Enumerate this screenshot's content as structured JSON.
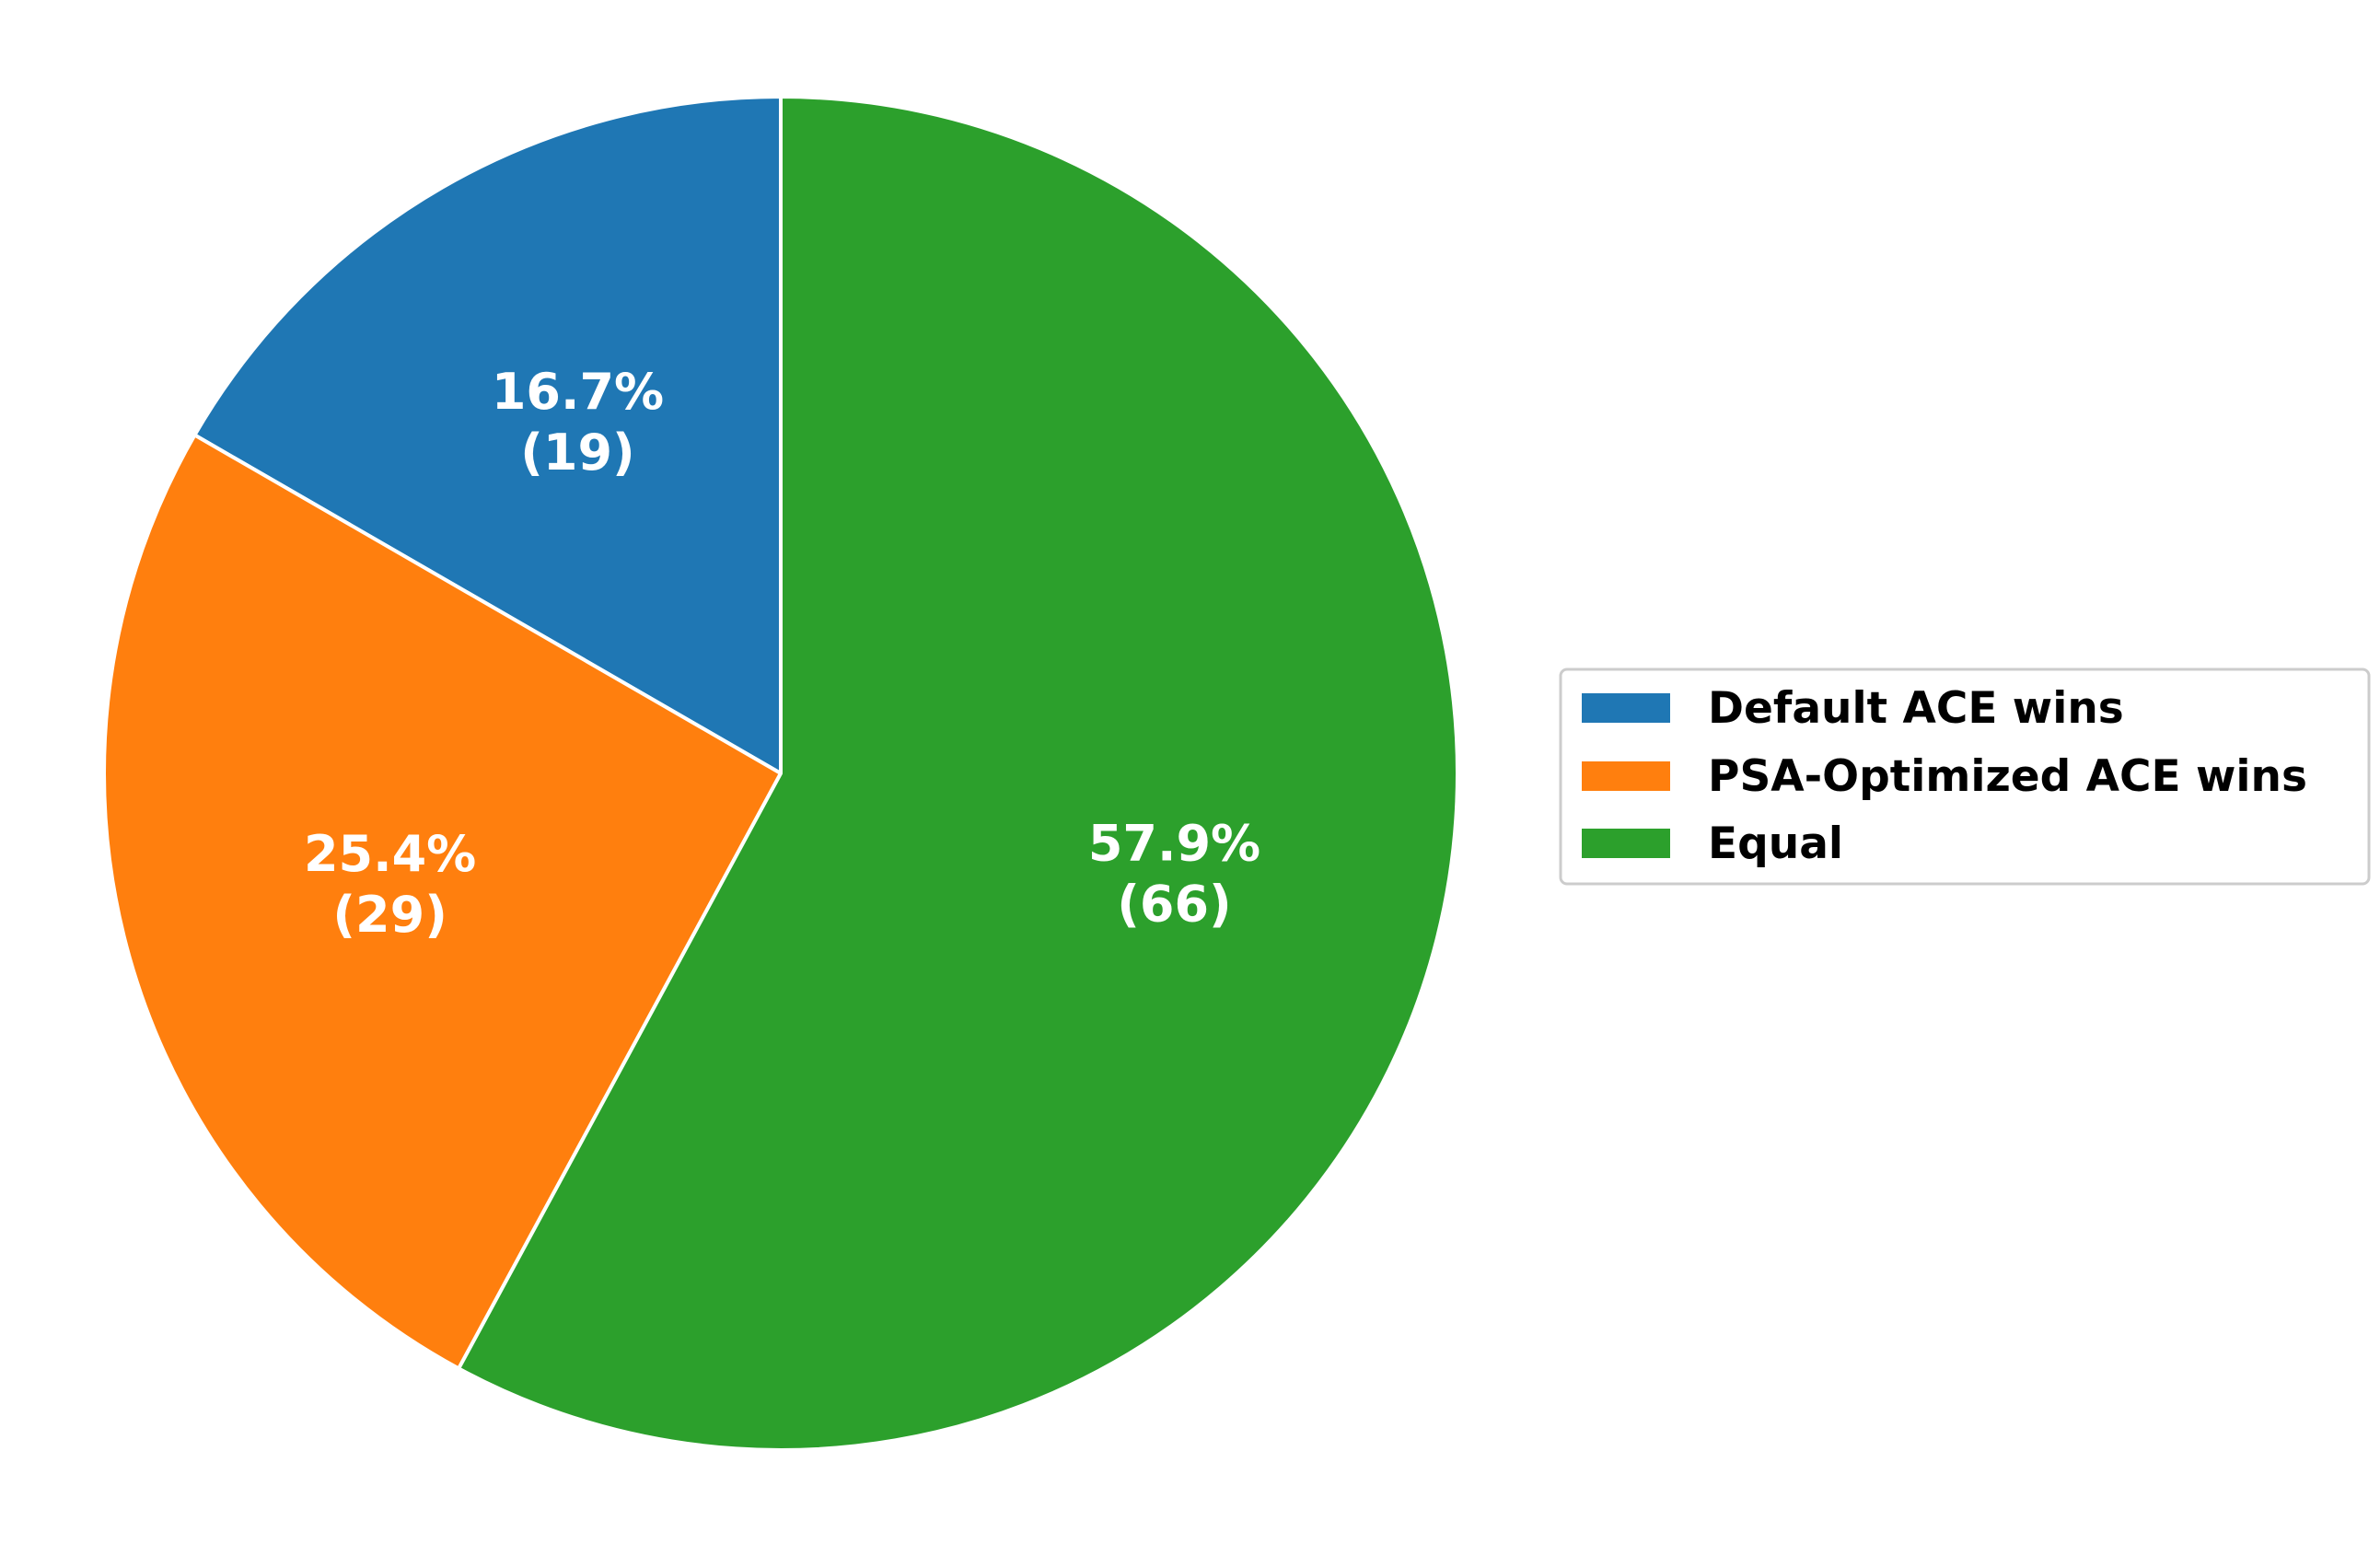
{
  "chart_data": {
    "type": "pie",
    "start_angle_deg": 90,
    "direction": "counterclockwise",
    "slices": [
      {
        "label": "Default ACE wins",
        "value": 19,
        "percent_label": "16.7%",
        "count_label": "(19)",
        "color": "#1f77b4"
      },
      {
        "label": "PSA-Optimized ACE wins",
        "value": 29,
        "percent_label": "25.4%",
        "count_label": "(29)",
        "color": "#ff7f0e"
      },
      {
        "label": "Equal",
        "value": 66,
        "percent_label": "57.9%",
        "count_label": "(66)",
        "color": "#2ca02c"
      }
    ],
    "total": 114,
    "edge_color": "#ffffff",
    "legend_position": "center-right"
  }
}
